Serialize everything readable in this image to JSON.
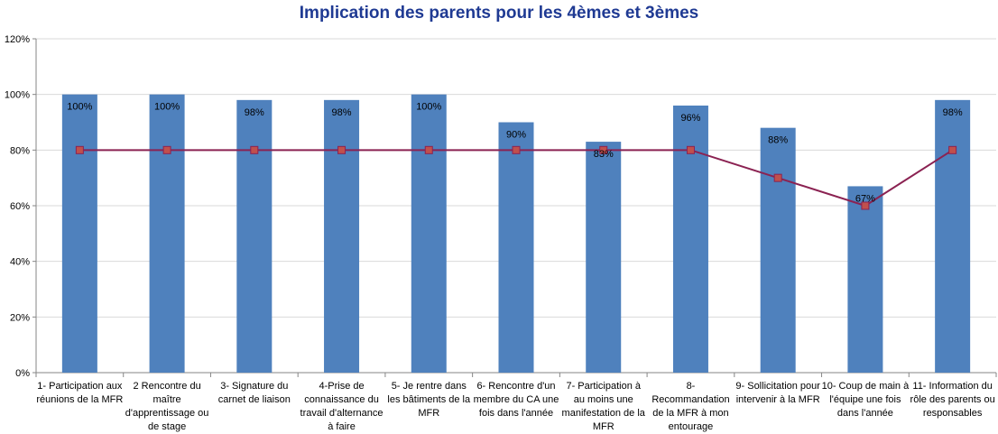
{
  "chart_data": {
    "type": "bar",
    "title": "Implication des parents pour les  4èmes et 3èmes",
    "xlabel": "",
    "ylabel": "",
    "ylim": [
      0,
      120
    ],
    "yticks": [
      "0%",
      "20%",
      "40%",
      "60%",
      "80%",
      "100%",
      "120%"
    ],
    "ytick_values": [
      0,
      20,
      40,
      60,
      80,
      100,
      120
    ],
    "grid": true,
    "legend": "none",
    "categories": [
      [
        "1- Participation aux",
        "réunions de la MFR"
      ],
      [
        "2 Rencontre du",
        "maître",
        "d'apprentissage ou",
        "de stage"
      ],
      [
        "3- Signature du",
        "carnet de liaison"
      ],
      [
        "4-Prise de",
        "connaissance du",
        "travail d'alternance",
        "à faire"
      ],
      [
        "5- Je rentre dans",
        "les bâtiments de la",
        "MFR"
      ],
      [
        "6- Rencontre d'un",
        "membre du CA une",
        "fois dans l'année"
      ],
      [
        "7- Participation à",
        "au moins une",
        "manifestation de la",
        "MFR"
      ],
      [
        "8-",
        "Recommandation",
        "de la MFR à mon",
        "entourage"
      ],
      [
        "9- Sollicitation pour",
        "intervenir à la MFR"
      ],
      [
        "10- Coup de main à",
        "l'équipe une fois",
        "dans l'année"
      ],
      [
        "11- Information du",
        "rôle des parents ou",
        "responsables"
      ]
    ],
    "series": [
      {
        "type": "bar",
        "values": [
          100,
          100,
          98,
          98,
          100,
          90,
          83,
          96,
          88,
          67,
          98
        ],
        "labels": [
          "100%",
          "100%",
          "98%",
          "98%",
          "100%",
          "90%",
          "83%",
          "96%",
          "88%",
          "67%",
          "98%"
        ],
        "color": "#4F81BD"
      },
      {
        "type": "line",
        "values": [
          80,
          80,
          80,
          80,
          80,
          80,
          80,
          80,
          70,
          60,
          80
        ],
        "color": "#8B2252",
        "marker_color": "#C0504D"
      }
    ]
  }
}
